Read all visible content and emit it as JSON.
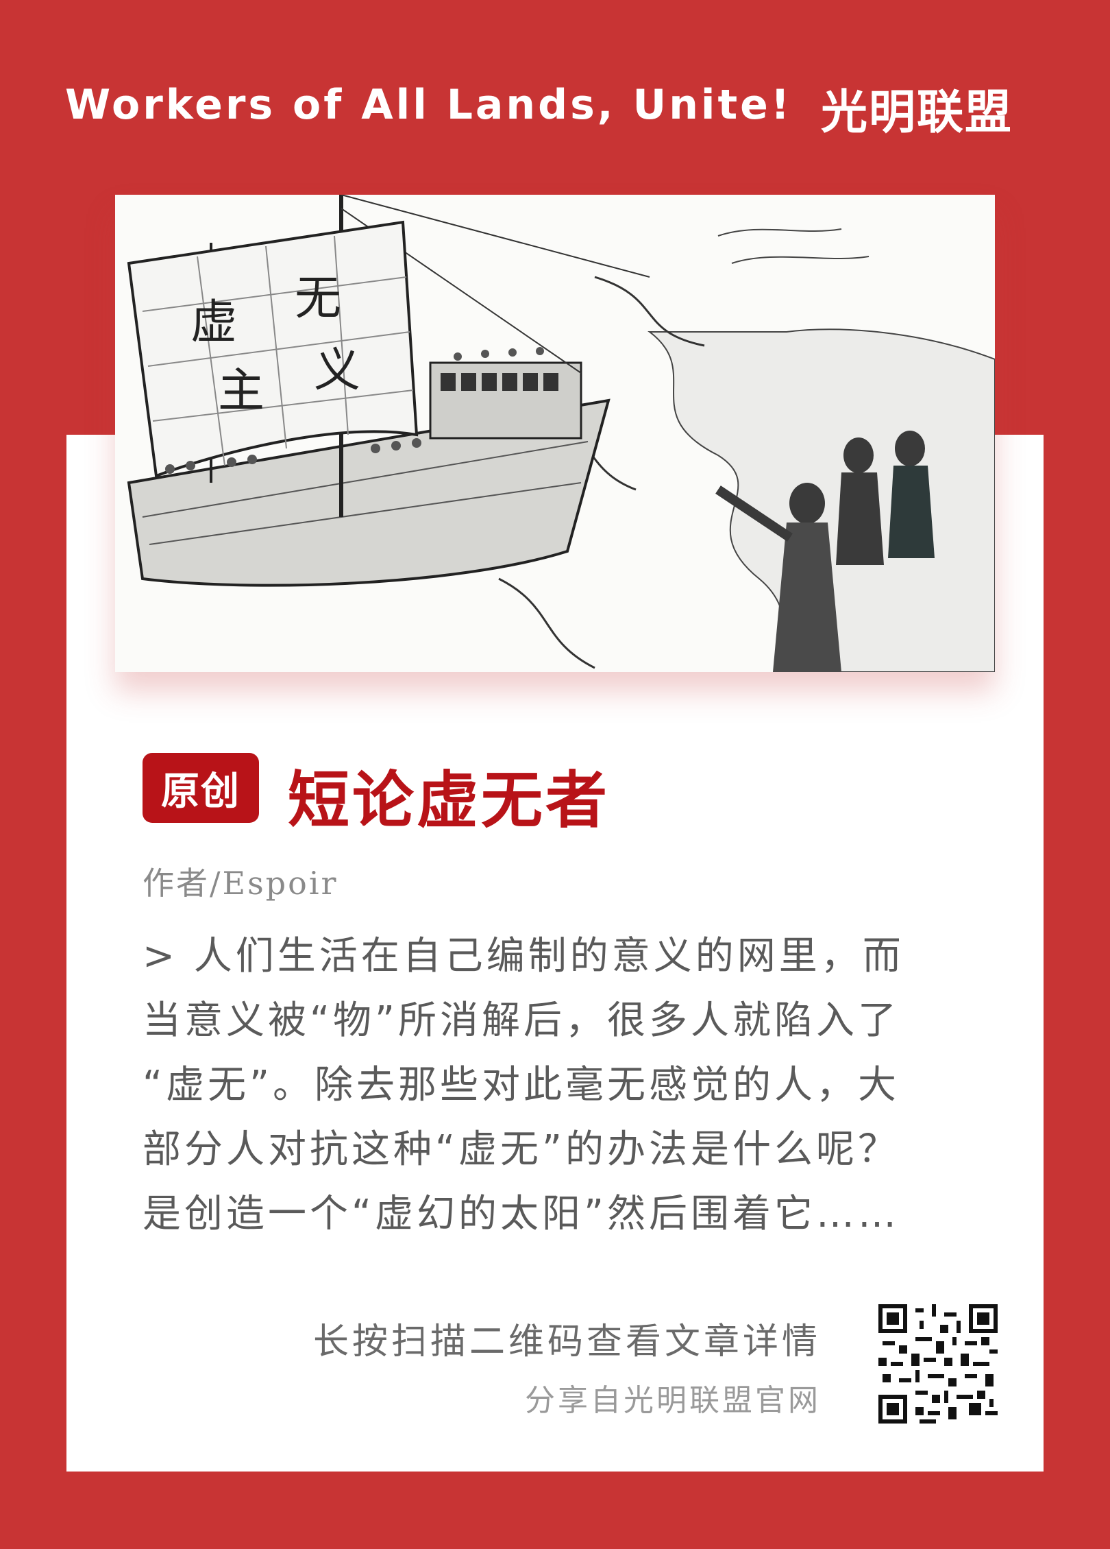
{
  "header": {
    "slogan": "Workers of All Lands, Unite!",
    "brand": "光明联盟"
  },
  "illustration": {
    "sail_text": [
      "虚",
      "无",
      "主",
      "义"
    ]
  },
  "article": {
    "badge": "原创",
    "title": "短论虚无者",
    "author": "作者/Espoir",
    "excerpt_lines": [
      "> 人们生活在自己编制的意义的网里，而",
      "当意义被“物”所消解后，很多人就陷入了",
      "“虚无”。除去那些对此毫无感觉的人，大",
      "部分人对抗这种“虚无”的办法是什么呢？",
      "是创造一个“虚幻的太阳”然后围着它……"
    ]
  },
  "footer": {
    "qr_hint": "长按扫描二维码查看文章详情",
    "source": "分享自光明联盟官网"
  },
  "colors": {
    "background": "#c83434",
    "accent": "#b81318",
    "card": "#ffffff"
  },
  "icons": {
    "qr": "qr-code-icon"
  }
}
